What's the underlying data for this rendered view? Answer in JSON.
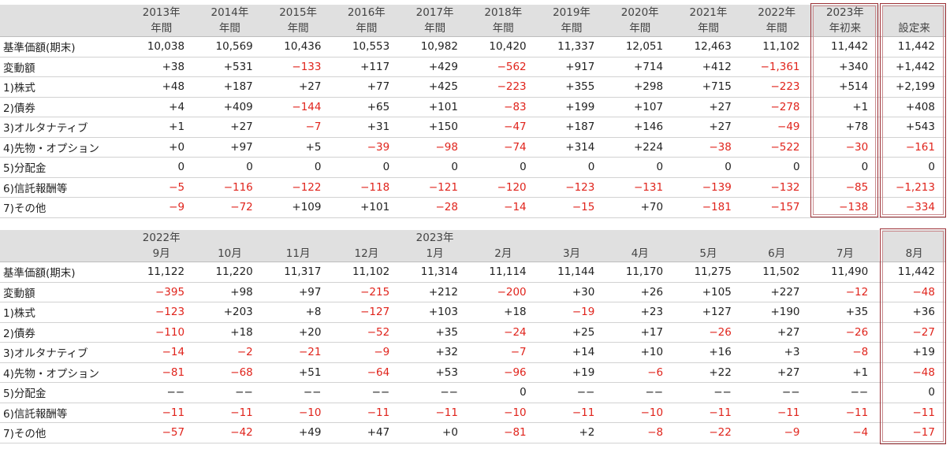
{
  "table1": {
    "columns": [
      {
        "l1": "2013年",
        "l2": "年間"
      },
      {
        "l1": "2014年",
        "l2": "年間"
      },
      {
        "l1": "2015年",
        "l2": "年間"
      },
      {
        "l1": "2016年",
        "l2": "年間"
      },
      {
        "l1": "2017年",
        "l2": "年間"
      },
      {
        "l1": "2018年",
        "l2": "年間"
      },
      {
        "l1": "2019年",
        "l2": "年間"
      },
      {
        "l1": "2020年",
        "l2": "年間"
      },
      {
        "l1": "2021年",
        "l2": "年間"
      },
      {
        "l1": "2022年",
        "l2": "年間"
      },
      {
        "l1": "2023年",
        "l2": "年初来"
      },
      {
        "l1": "",
        "l2": "設定来"
      }
    ],
    "rows": [
      {
        "label": "基準価額(期末)",
        "values": [
          "10,038",
          "10,569",
          "10,436",
          "10,553",
          "10,982",
          "10,420",
          "11,337",
          "12,051",
          "12,463",
          "11,102",
          "11,442",
          "11,442"
        ]
      },
      {
        "label": "変動額",
        "values": [
          "+38",
          "+531",
          "−133",
          "+117",
          "+429",
          "−562",
          "+917",
          "+714",
          "+412",
          "−1,361",
          "+340",
          "+1,442"
        ]
      },
      {
        "label": "1)株式",
        "values": [
          "+48",
          "+187",
          "+27",
          "+77",
          "+425",
          "−223",
          "+355",
          "+298",
          "+715",
          "−223",
          "+514",
          "+2,199"
        ]
      },
      {
        "label": "2)債券",
        "values": [
          "+4",
          "+409",
          "−144",
          "+65",
          "+101",
          "−83",
          "+199",
          "+107",
          "+27",
          "−278",
          "+1",
          "+408"
        ]
      },
      {
        "label": "3)オルタナティブ",
        "values": [
          "+1",
          "+27",
          "−7",
          "+31",
          "+150",
          "−47",
          "+187",
          "+146",
          "+27",
          "−49",
          "+78",
          "+543"
        ]
      },
      {
        "label": "4)先物・オプション",
        "values": [
          "+0",
          "+97",
          "+5",
          "−39",
          "−98",
          "−74",
          "+314",
          "+224",
          "−38",
          "−522",
          "−30",
          "−161"
        ]
      },
      {
        "label": "5)分配金",
        "values": [
          "0",
          "0",
          "0",
          "0",
          "0",
          "0",
          "0",
          "0",
          "0",
          "0",
          "0",
          "0"
        ]
      },
      {
        "label": "6)信託報酬等",
        "values": [
          "−5",
          "−116",
          "−122",
          "−118",
          "−121",
          "−120",
          "−123",
          "−131",
          "−139",
          "−132",
          "−85",
          "−1,213"
        ]
      },
      {
        "label": "7)その他",
        "values": [
          "−9",
          "−72",
          "+109",
          "+101",
          "−28",
          "−14",
          "−15",
          "+70",
          "−181",
          "−157",
          "−138",
          "−334"
        ]
      }
    ]
  },
  "table2": {
    "columns": [
      {
        "l1": "2022年",
        "l2": "9月"
      },
      {
        "l1": "",
        "l2": "10月"
      },
      {
        "l1": "",
        "l2": "11月"
      },
      {
        "l1": "",
        "l2": "12月"
      },
      {
        "l1": "2023年",
        "l2": "1月"
      },
      {
        "l1": "",
        "l2": "2月"
      },
      {
        "l1": "",
        "l2": "3月"
      },
      {
        "l1": "",
        "l2": "4月"
      },
      {
        "l1": "",
        "l2": "5月"
      },
      {
        "l1": "",
        "l2": "6月"
      },
      {
        "l1": "",
        "l2": "7月"
      },
      {
        "l1": "",
        "l2": "8月"
      }
    ],
    "rows": [
      {
        "label": "基準価額(期末)",
        "values": [
          "11,122",
          "11,220",
          "11,317",
          "11,102",
          "11,314",
          "11,114",
          "11,144",
          "11,170",
          "11,275",
          "11,502",
          "11,490",
          "11,442"
        ]
      },
      {
        "label": "変動額",
        "values": [
          "−395",
          "+98",
          "+97",
          "−215",
          "+212",
          "−200",
          "+30",
          "+26",
          "+105",
          "+227",
          "−12",
          "−48"
        ]
      },
      {
        "label": "1)株式",
        "values": [
          "−123",
          "+203",
          "+8",
          "−127",
          "+103",
          "+18",
          "−19",
          "+23",
          "+127",
          "+190",
          "+35",
          "+36"
        ]
      },
      {
        "label": "2)債券",
        "values": [
          "−110",
          "+18",
          "+20",
          "−52",
          "+35",
          "−24",
          "+25",
          "+17",
          "−26",
          "+27",
          "−26",
          "−27"
        ]
      },
      {
        "label": "3)オルタナティブ",
        "values": [
          "−14",
          "−2",
          "−21",
          "−9",
          "+32",
          "−7",
          "+14",
          "+10",
          "+16",
          "+3",
          "−8",
          "+19"
        ]
      },
      {
        "label": "4)先物・オプション",
        "values": [
          "−81",
          "−68",
          "+51",
          "−64",
          "+53",
          "−96",
          "+19",
          "−6",
          "+22",
          "+27",
          "+1",
          "−48"
        ]
      },
      {
        "label": "5)分配金",
        "values": [
          "−−",
          "−−",
          "−−",
          "−−",
          "−−",
          "0",
          "−−",
          "−−",
          "−−",
          "−−",
          "−−",
          "0"
        ]
      },
      {
        "label": "6)信託報酬等",
        "values": [
          "−11",
          "−11",
          "−10",
          "−11",
          "−11",
          "−10",
          "−11",
          "−10",
          "−11",
          "−11",
          "−11",
          "−11"
        ]
      },
      {
        "label": "7)その他",
        "values": [
          "−57",
          "−42",
          "+49",
          "+47",
          "+0",
          "−81",
          "+2",
          "−8",
          "−22",
          "−9",
          "−4",
          "−17"
        ]
      }
    ]
  },
  "colors": {
    "negative": "#e0241c",
    "highlight_border": "#9c3036",
    "header_bg": "#e0e0e0"
  }
}
